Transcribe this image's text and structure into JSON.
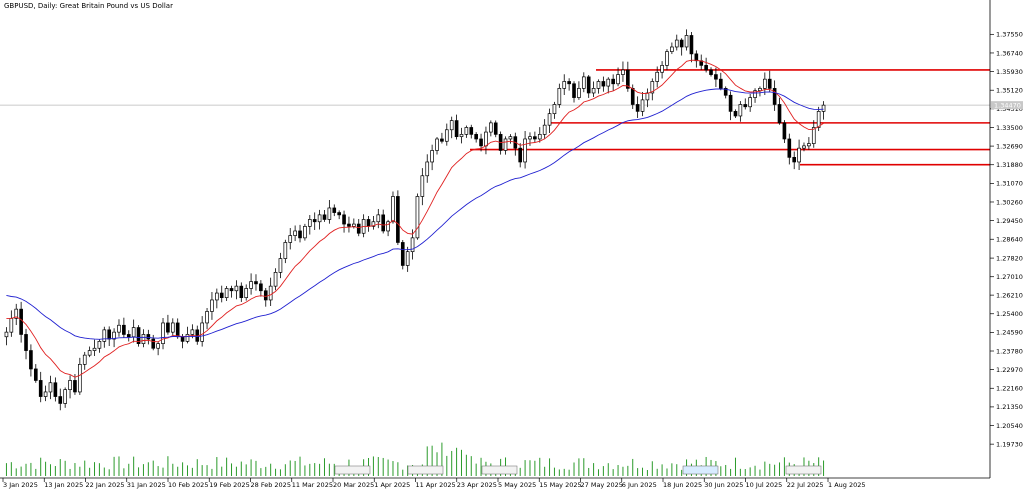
{
  "chart_data": {
    "type": "candlestick",
    "title": "GBPUSD, Daily:  Great Britain Pound vs US Dollar",
    "symbol": "GBPUSD",
    "timeframe": "Daily",
    "ylim": [
      1.1878,
      1.3826
    ],
    "yticks": [
      "1.37550",
      "1.36740",
      "1.35930",
      "1.35120",
      "1.34310",
      "1.33500",
      "1.32690",
      "1.31880",
      "1.31070",
      "1.30260",
      "1.29450",
      "1.28640",
      "1.27820",
      "1.27010",
      "1.26210",
      "1.25400",
      "1.24590",
      "1.23780",
      "1.22970",
      "1.22160",
      "1.21350",
      "1.20540",
      "1.19730"
    ],
    "xticks": [
      "3 Jan 2025",
      "13 Jan 2025",
      "22 Jan 2025",
      "31 Jan 2025",
      "10 Feb 2025",
      "19 Feb 2025",
      "28 Feb 2025",
      "11 Mar 2025",
      "20 Mar 2025",
      "1 Apr 2025",
      "11 Apr 2025",
      "23 Apr 2025",
      "5 May 2025",
      "15 May 2025",
      "27 May 2025",
      "6 Jun 2025",
      "18 Jun 2025",
      "30 Jun 2025",
      "10 Jul 2025",
      "22 Jul 2025",
      "1 Aug 2025"
    ],
    "current_price": "1.34470",
    "horizontal_levels": [
      1.36,
      1.337,
      1.3254,
      1.3188
    ],
    "close": [
      1.246,
      1.252,
      1.256,
      1.245,
      1.238,
      1.23,
      1.225,
      1.218,
      1.22,
      1.224,
      1.218,
      1.215,
      1.221,
      1.225,
      1.22,
      1.232,
      1.236,
      1.238,
      1.239,
      1.242,
      1.247,
      1.243,
      1.246,
      1.249,
      1.245,
      1.244,
      1.248,
      1.241,
      1.245,
      1.243,
      1.239,
      1.241,
      1.25,
      1.246,
      1.25,
      1.244,
      1.242,
      1.245,
      1.247,
      1.242,
      1.25,
      1.255,
      1.26,
      1.263,
      1.261,
      1.265,
      1.264,
      1.266,
      1.261,
      1.265,
      1.268,
      1.267,
      1.264,
      1.26,
      1.266,
      1.272,
      1.278,
      1.285,
      1.288,
      1.29,
      1.287,
      1.292,
      1.295,
      1.294,
      1.297,
      1.295,
      1.3,
      1.298,
      1.297,
      1.293,
      1.292,
      1.293,
      1.289,
      1.295,
      1.292,
      1.294,
      1.297,
      1.29,
      1.294,
      1.305,
      1.285,
      1.275,
      1.281,
      1.287,
      1.305,
      1.314,
      1.32,
      1.325,
      1.33,
      1.329,
      1.334,
      1.338,
      1.331,
      1.332,
      1.335,
      1.332,
      1.33,
      1.327,
      1.333,
      1.337,
      1.332,
      1.325,
      1.33,
      1.331,
      1.326,
      1.32,
      1.33,
      1.331,
      1.33,
      1.332,
      1.336,
      1.341,
      1.345,
      1.352,
      1.355,
      1.354,
      1.348,
      1.352,
      1.357,
      1.35,
      1.352,
      1.355,
      1.353,
      1.356,
      1.354,
      1.358,
      1.36,
      1.352,
      1.345,
      1.342,
      1.347,
      1.35,
      1.355,
      1.359,
      1.362,
      1.368,
      1.37,
      1.373,
      1.37,
      1.375,
      1.367,
      1.364,
      1.362,
      1.36,
      1.358,
      1.356,
      1.352,
      1.349,
      1.342,
      1.34,
      1.345,
      1.344,
      1.348,
      1.351,
      1.352,
      1.356,
      1.352,
      1.345,
      1.337,
      1.33,
      1.322,
      1.32,
      1.326,
      1.327,
      1.328,
      1.335,
      1.342,
      1.3447
    ]
  }
}
